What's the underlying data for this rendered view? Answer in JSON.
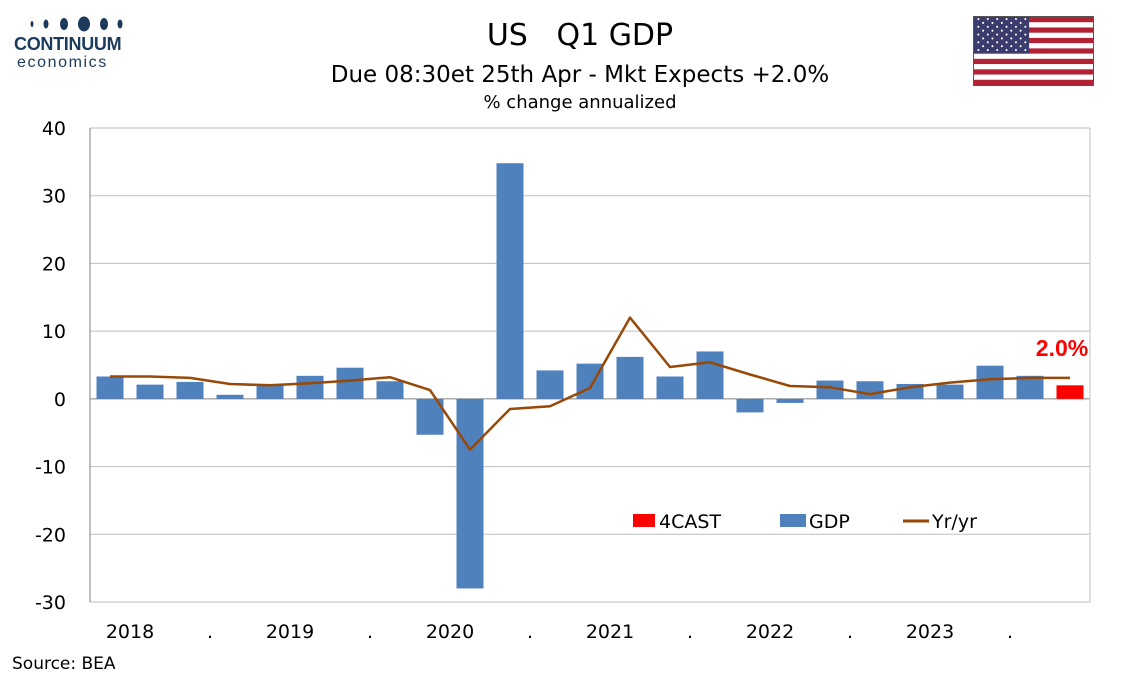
{
  "header": {
    "logo_line1": "CONTINUUM",
    "logo_line2": "economics",
    "title": "US   Q1 GDP",
    "subtitle": "Due 08:30et 25th Apr - Mkt Expects +2.0%",
    "unit": "% change annualized"
  },
  "footer": {
    "source": "Source: BEA"
  },
  "colors": {
    "gdp": "#4f81bd",
    "forecast": "#ff0000",
    "yoy": "#984807",
    "grid": "#bfbfbf",
    "logo": "#1b3a5c"
  },
  "chart_data": {
    "type": "bar",
    "ylim": [
      -30,
      40
    ],
    "yticks": [
      40,
      30,
      20,
      10,
      0,
      -10,
      -20,
      -30
    ],
    "grid": true,
    "legend_placement": "bottom-right",
    "legend": [
      "4CAST",
      "GDP",
      "Yr/yr"
    ],
    "x_labels": [
      "2018",
      ".",
      "2019",
      ".",
      "2020",
      ".",
      "2021",
      ".",
      "2022",
      ".",
      "2023",
      "."
    ],
    "series": [
      {
        "name": "GDP",
        "kind": "bar",
        "values": [
          3.3,
          2.1,
          2.5,
          0.6,
          2.2,
          3.4,
          4.6,
          2.6,
          -5.3,
          -28.0,
          34.8,
          4.2,
          5.2,
          6.2,
          3.3,
          7.0,
          -2.0,
          -0.6,
          2.7,
          2.6,
          2.2,
          2.1,
          4.9,
          3.4,
          null
        ]
      },
      {
        "name": "4CAST",
        "kind": "bar",
        "values": [
          null,
          null,
          null,
          null,
          null,
          null,
          null,
          null,
          null,
          null,
          null,
          null,
          null,
          null,
          null,
          null,
          null,
          null,
          null,
          null,
          null,
          null,
          null,
          null,
          2.0
        ]
      },
      {
        "name": "Yr/yr",
        "kind": "line",
        "values": [
          3.3,
          3.3,
          3.1,
          2.2,
          2.0,
          2.3,
          2.7,
          3.2,
          1.3,
          -7.5,
          -1.5,
          -1.1,
          1.6,
          12.0,
          4.7,
          5.4,
          3.6,
          1.9,
          1.7,
          0.7,
          1.7,
          2.4,
          2.9,
          3.1,
          3.1
        ]
      }
    ],
    "annotations": [
      {
        "text": "2.0%",
        "color": "#ff0000"
      }
    ]
  }
}
